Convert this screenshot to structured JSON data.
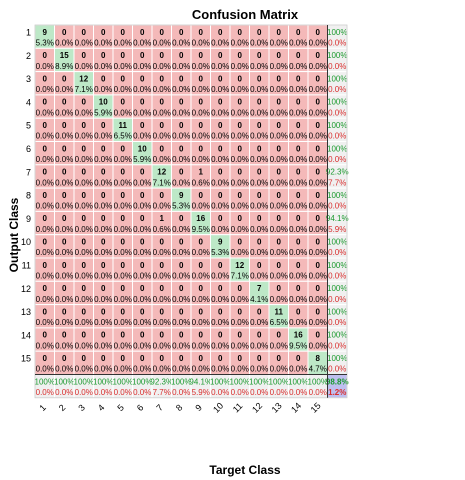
{
  "chart_data": {
    "type": "heatmap",
    "title": "Confusion Matrix",
    "xlabel": "Target Class",
    "ylabel": "Output Class",
    "classes": [
      "1",
      "2",
      "3",
      "4",
      "5",
      "6",
      "7",
      "8",
      "9",
      "10",
      "11",
      "12",
      "13",
      "14",
      "15"
    ],
    "matrix": [
      [
        9,
        0,
        0,
        0,
        0,
        0,
        0,
        0,
        0,
        0,
        0,
        0,
        0,
        0,
        0
      ],
      [
        0,
        15,
        0,
        0,
        0,
        0,
        0,
        0,
        0,
        0,
        0,
        0,
        0,
        0,
        0
      ],
      [
        0,
        0,
        12,
        0,
        0,
        0,
        0,
        0,
        0,
        0,
        0,
        0,
        0,
        0,
        0
      ],
      [
        0,
        0,
        0,
        10,
        0,
        0,
        0,
        0,
        0,
        0,
        0,
        0,
        0,
        0,
        0
      ],
      [
        0,
        0,
        0,
        0,
        11,
        0,
        0,
        0,
        0,
        0,
        0,
        0,
        0,
        0,
        0
      ],
      [
        0,
        0,
        0,
        0,
        0,
        10,
        0,
        0,
        0,
        0,
        0,
        0,
        0,
        0,
        0
      ],
      [
        0,
        0,
        0,
        0,
        0,
        0,
        12,
        0,
        1,
        0,
        0,
        0,
        0,
        0,
        0
      ],
      [
        0,
        0,
        0,
        0,
        0,
        0,
        0,
        9,
        0,
        0,
        0,
        0,
        0,
        0,
        0
      ],
      [
        0,
        0,
        0,
        0,
        0,
        0,
        1,
        0,
        16,
        0,
        0,
        0,
        0,
        0,
        0
      ],
      [
        0,
        0,
        0,
        0,
        0,
        0,
        0,
        0,
        0,
        9,
        0,
        0,
        0,
        0,
        0
      ],
      [
        0,
        0,
        0,
        0,
        0,
        0,
        0,
        0,
        0,
        0,
        12,
        0,
        0,
        0,
        0
      ],
      [
        0,
        0,
        0,
        0,
        0,
        0,
        0,
        0,
        0,
        0,
        0,
        7,
        0,
        0,
        0
      ],
      [
        0,
        0,
        0,
        0,
        0,
        0,
        0,
        0,
        0,
        0,
        0,
        0,
        11,
        0,
        0
      ],
      [
        0,
        0,
        0,
        0,
        0,
        0,
        0,
        0,
        0,
        0,
        0,
        0,
        0,
        16,
        0
      ],
      [
        0,
        0,
        0,
        0,
        0,
        0,
        0,
        0,
        0,
        0,
        0,
        0,
        0,
        0,
        8
      ]
    ],
    "cell_percent": [
      [
        "5.3%",
        "0.0%",
        "0.0%",
        "0.0%",
        "0.0%",
        "0.0%",
        "0.0%",
        "0.0%",
        "0.0%",
        "0.0%",
        "0.0%",
        "0.0%",
        "0.0%",
        "0.0%",
        "0.0%"
      ],
      [
        "0.0%",
        "8.9%",
        "0.0%",
        "0.0%",
        "0.0%",
        "0.0%",
        "0.0%",
        "0.0%",
        "0.0%",
        "0.0%",
        "0.0%",
        "0.0%",
        "0.0%",
        "0.0%",
        "0.0%"
      ],
      [
        "0.0%",
        "0.0%",
        "7.1%",
        "0.0%",
        "0.0%",
        "0.0%",
        "0.0%",
        "0.0%",
        "0.0%",
        "0.0%",
        "0.0%",
        "0.0%",
        "0.0%",
        "0.0%",
        "0.0%"
      ],
      [
        "0.0%",
        "0.0%",
        "0.0%",
        "5.9%",
        "0.0%",
        "0.0%",
        "0.0%",
        "0.0%",
        "0.0%",
        "0.0%",
        "0.0%",
        "0.0%",
        "0.0%",
        "0.0%",
        "0.0%"
      ],
      [
        "0.0%",
        "0.0%",
        "0.0%",
        "0.0%",
        "6.5%",
        "0.0%",
        "0.0%",
        "0.0%",
        "0.0%",
        "0.0%",
        "0.0%",
        "0.0%",
        "0.0%",
        "0.0%",
        "0.0%"
      ],
      [
        "0.0%",
        "0.0%",
        "0.0%",
        "0.0%",
        "0.0%",
        "5.9%",
        "0.0%",
        "0.0%",
        "0.0%",
        "0.0%",
        "0.0%",
        "0.0%",
        "0.0%",
        "0.0%",
        "0.0%"
      ],
      [
        "0.0%",
        "0.0%",
        "0.0%",
        "0.0%",
        "0.0%",
        "0.0%",
        "7.1%",
        "0.0%",
        "0.6%",
        "0.0%",
        "0.0%",
        "0.0%",
        "0.0%",
        "0.0%",
        "0.0%"
      ],
      [
        "0.0%",
        "0.0%",
        "0.0%",
        "0.0%",
        "0.0%",
        "0.0%",
        "0.0%",
        "5.3%",
        "0.0%",
        "0.0%",
        "0.0%",
        "0.0%",
        "0.0%",
        "0.0%",
        "0.0%"
      ],
      [
        "0.0%",
        "0.0%",
        "0.0%",
        "0.0%",
        "0.0%",
        "0.0%",
        "0.6%",
        "0.0%",
        "9.5%",
        "0.0%",
        "0.0%",
        "0.0%",
        "0.0%",
        "0.0%",
        "0.0%"
      ],
      [
        "0.0%",
        "0.0%",
        "0.0%",
        "0.0%",
        "0.0%",
        "0.0%",
        "0.0%",
        "0.0%",
        "0.0%",
        "5.3%",
        "0.0%",
        "0.0%",
        "0.0%",
        "0.0%",
        "0.0%"
      ],
      [
        "0.0%",
        "0.0%",
        "0.0%",
        "0.0%",
        "0.0%",
        "0.0%",
        "0.0%",
        "0.0%",
        "0.0%",
        "0.0%",
        "7.1%",
        "0.0%",
        "0.0%",
        "0.0%",
        "0.0%"
      ],
      [
        "0.0%",
        "0.0%",
        "0.0%",
        "0.0%",
        "0.0%",
        "0.0%",
        "0.0%",
        "0.0%",
        "0.0%",
        "0.0%",
        "0.0%",
        "4.1%",
        "0.0%",
        "0.0%",
        "0.0%"
      ],
      [
        "0.0%",
        "0.0%",
        "0.0%",
        "0.0%",
        "0.0%",
        "0.0%",
        "0.0%",
        "0.0%",
        "0.0%",
        "0.0%",
        "0.0%",
        "0.0%",
        "6.5%",
        "0.0%",
        "0.0%"
      ],
      [
        "0.0%",
        "0.0%",
        "0.0%",
        "0.0%",
        "0.0%",
        "0.0%",
        "0.0%",
        "0.0%",
        "0.0%",
        "0.0%",
        "0.0%",
        "0.0%",
        "0.0%",
        "9.5%",
        "0.0%"
      ],
      [
        "0.0%",
        "0.0%",
        "0.0%",
        "0.0%",
        "0.0%",
        "0.0%",
        "0.0%",
        "0.0%",
        "0.0%",
        "0.0%",
        "0.0%",
        "0.0%",
        "0.0%",
        "0.0%",
        "4.7%"
      ]
    ],
    "row_summary": [
      [
        "100%",
        "0.0%"
      ],
      [
        "100%",
        "0.0%"
      ],
      [
        "100%",
        "0.0%"
      ],
      [
        "100%",
        "0.0%"
      ],
      [
        "100%",
        "0.0%"
      ],
      [
        "100%",
        "0.0%"
      ],
      [
        "92.3%",
        "7.7%"
      ],
      [
        "100%",
        "0.0%"
      ],
      [
        "94.1%",
        "5.9%"
      ],
      [
        "100%",
        "0.0%"
      ],
      [
        "100%",
        "0.0%"
      ],
      [
        "100%",
        "0.0%"
      ],
      [
        "100%",
        "0.0%"
      ],
      [
        "100%",
        "0.0%"
      ],
      [
        "100%",
        "0.0%"
      ]
    ],
    "col_summary": [
      [
        "100%",
        "0.0%"
      ],
      [
        "100%",
        "0.0%"
      ],
      [
        "100%",
        "0.0%"
      ],
      [
        "100%",
        "0.0%"
      ],
      [
        "100%",
        "0.0%"
      ],
      [
        "100%",
        "0.0%"
      ],
      [
        "92.3%",
        "7.7%"
      ],
      [
        "100%",
        "0.0%"
      ],
      [
        "94.1%",
        "5.9%"
      ],
      [
        "100%",
        "0.0%"
      ],
      [
        "100%",
        "0.0%"
      ],
      [
        "100%",
        "0.0%"
      ],
      [
        "100%",
        "0.0%"
      ],
      [
        "100%",
        "0.0%"
      ],
      [
        "100%",
        "0.0%"
      ]
    ],
    "overall": [
      "98.8%",
      "1.2%"
    ],
    "colors": {
      "correct_cell": "#bde8c7",
      "incorrect_cell": "#f4b9b9",
      "summary_cell": "#f0f0f0",
      "overall_cell": "#bfbfef",
      "correct_text": "#1a9a2e",
      "incorrect_text": "#d92d2d",
      "grid": "#ffffff",
      "text": "#000000"
    }
  }
}
